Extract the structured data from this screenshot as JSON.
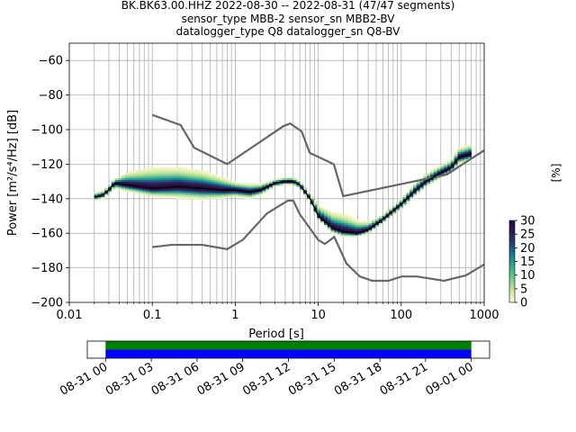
{
  "title_lines": [
    "BK.BK63.00.HHZ   2022-08-30 -- 2022-08-31  (47/47 segments)",
    "sensor_type MBB-2 sensor_sn MBB2-BV",
    "datalogger_type Q8 datalogger_sn Q8-BV"
  ],
  "chart_data": [
    {
      "type": "heatmap",
      "xlabel": "Period [s]",
      "ylabel": "Power [m²/s⁴/Hz] [dB]",
      "x_scale": "log",
      "xlim": [
        0.01,
        1000
      ],
      "ylim": [
        -200,
        -50
      ],
      "x_ticks": [
        0.01,
        0.1,
        1,
        10,
        100,
        1000
      ],
      "x_tick_labels": [
        "0.01",
        "0.1",
        "1",
        "10",
        "100",
        "1000"
      ],
      "y_ticks": [
        -200,
        -180,
        -160,
        -140,
        -120,
        -100,
        -80,
        -60
      ],
      "y_tick_labels": [
        "−200",
        "−180",
        "−160",
        "−140",
        "−120",
        "−100",
        "−80",
        "−60"
      ],
      "grid": true,
      "colorbar": {
        "label": "[%]",
        "range": [
          0,
          30
        ],
        "ticks": [
          0,
          5,
          10,
          15,
          20,
          25,
          30
        ],
        "tick_labels": [
          "0",
          "5",
          "10",
          "15",
          "20",
          "25",
          "30"
        ],
        "colormap": [
          "#fefecc",
          "#c9e3a0",
          "#7ccb8d",
          "#2fae94",
          "#1a7d8c",
          "#23457a",
          "#2c1d55",
          "#2a0a3a"
        ]
      },
      "noise_model_color": "#666666",
      "mode_color": "#000000",
      "high_noise_model": {
        "x": [
          0.1,
          0.22,
          0.32,
          0.8,
          3.8,
          4.6,
          6.3,
          7.9,
          15.4,
          20,
          354.8,
          1000
        ],
        "y": [
          -91.5,
          -97.4,
          -110.5,
          -120,
          -98,
          -96.5,
          -101,
          -113.5,
          -120,
          -138.5,
          -126,
          -112
        ]
      },
      "low_noise_model": {
        "x": [
          0.1,
          0.17,
          0.4,
          0.8,
          1.24,
          2.4,
          4.3,
          5,
          6,
          10,
          12,
          15.6,
          21.9,
          31.6,
          45,
          70,
          101,
          154,
          328,
          600,
          1000
        ],
        "y": [
          -168,
          -166.7,
          -166.7,
          -169.2,
          -163.7,
          -148.6,
          -141.1,
          -141.1,
          -149,
          -163.8,
          -166.2,
          -162.1,
          -177.5,
          -185,
          -187.5,
          -187.5,
          -185,
          -185,
          -187.5,
          -184.4,
          -178
        ]
      },
      "mode": {
        "x": [
          0.02,
          0.025,
          0.03,
          0.035,
          0.05,
          0.1,
          0.2,
          0.4,
          0.7,
          1,
          1.5,
          2,
          3,
          4,
          5,
          6,
          8,
          10,
          15,
          20,
          30,
          40,
          60,
          100,
          150,
          200,
          300,
          400,
          500,
          700
        ],
        "y": [
          -139,
          -138,
          -135,
          -131,
          -132,
          -134,
          -133,
          -134,
          -135,
          -135,
          -136,
          -135,
          -131,
          -130,
          -130,
          -132,
          -140,
          -150,
          -157,
          -159,
          -160,
          -158,
          -152,
          -143,
          -135,
          -130,
          -125,
          -122,
          -116,
          -114
        ]
      },
      "pdf_spread": {
        "x": [
          0.02,
          0.025,
          0.03,
          0.035,
          0.05,
          0.1,
          0.2,
          0.4,
          0.7,
          1,
          1.5,
          2,
          3,
          4,
          5,
          6,
          8,
          10,
          15,
          20,
          30,
          40,
          60,
          100,
          150,
          200,
          300,
          400,
          500,
          700
        ],
        "low": [
          -141,
          -140,
          -137,
          -134,
          -136,
          -139,
          -140,
          -141,
          -140,
          -139,
          -140,
          -138,
          -133,
          -132,
          -132,
          -134,
          -142,
          -152,
          -160,
          -162,
          -162,
          -160,
          -154,
          -146,
          -138,
          -133,
          -128,
          -125,
          -120,
          -118
        ],
        "high": [
          -137,
          -136,
          -132,
          -128,
          -124,
          -121,
          -121,
          -123,
          -127,
          -130,
          -131,
          -131,
          -129,
          -128,
          -128,
          -130,
          -137,
          -143,
          -147,
          -148,
          -152,
          -153,
          -149,
          -140,
          -130,
          -125,
          -120,
          -117,
          -110,
          -108
        ]
      },
      "peak_percent": 30
    },
    {
      "type": "timeline",
      "x_tick_labels": [
        "08-31 00",
        "08-31 03",
        "08-31 06",
        "08-31 09",
        "08-31 12",
        "08-31 15",
        "08-31 18",
        "08-31 21",
        "09-01 00"
      ],
      "x_ticks_hours": [
        0,
        3,
        6,
        9,
        12,
        15,
        18,
        21,
        24
      ],
      "xlim_hours": [
        -1.2,
        25.2
      ],
      "data_coverage_hours": [
        0,
        24
      ],
      "psd_coverage_hours": [
        0,
        24
      ],
      "data_color": "#008000",
      "psd_color": "#0000ff"
    }
  ]
}
